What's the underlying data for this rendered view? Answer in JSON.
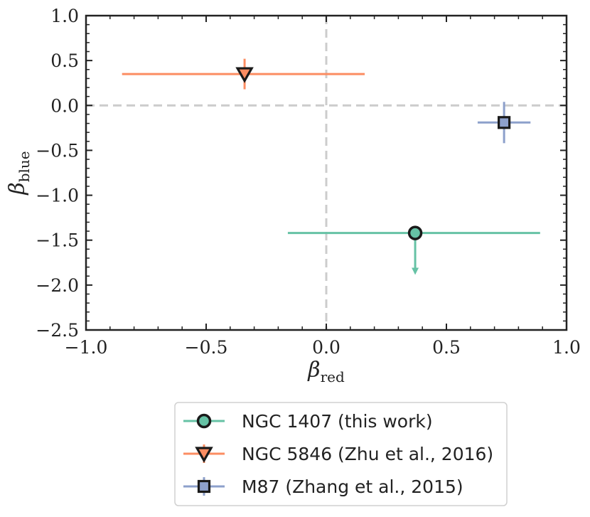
{
  "chart_data": {
    "type": "scatter",
    "title": "",
    "xlabel": "β",
    "xlabel_sub": "red",
    "ylabel": "β",
    "ylabel_sub": "blue",
    "xlim": [
      -1.0,
      1.0
    ],
    "ylim": [
      -2.5,
      1.0
    ],
    "xticks": [
      -1.0,
      -0.5,
      0.0,
      0.5,
      1.0
    ],
    "xtick_labels": [
      "−1.0",
      "−0.5",
      "0.0",
      "0.5",
      "1.0"
    ],
    "yticks": [
      1.0,
      0.5,
      0.0,
      -0.5,
      -1.0,
      -1.5,
      -2.0,
      -2.5
    ],
    "ytick_labels": [
      "1.0",
      "0.5",
      "0.0",
      "−0.5",
      "−1.0",
      "−1.5",
      "−2.0",
      "−2.5"
    ],
    "reference_lines": {
      "x": 0.0,
      "y": 0.0
    },
    "legend_position": "below",
    "series": [
      {
        "name": "NGC 1407 (this work)",
        "marker": "circle",
        "color": "#66c2a5",
        "x": 0.37,
        "y": -1.42,
        "x_err": [
          0.53,
          0.52
        ],
        "upper_limit": true,
        "arrow_to": -1.87
      },
      {
        "name": "NGC 5846 (Zhu et al., 2016)",
        "marker": "triangle-down",
        "color": "#fc8d62",
        "x": -0.34,
        "y": 0.35,
        "x_err": [
          0.51,
          0.5
        ],
        "y_err": [
          0.17,
          0.17
        ]
      },
      {
        "name": "M87 (Zhang et al., 2015)",
        "marker": "square",
        "color": "#8da0cb",
        "x": 0.74,
        "y": -0.19,
        "x_err": [
          0.11,
          0.11
        ],
        "y_err": [
          0.23,
          0.23
        ]
      }
    ]
  }
}
